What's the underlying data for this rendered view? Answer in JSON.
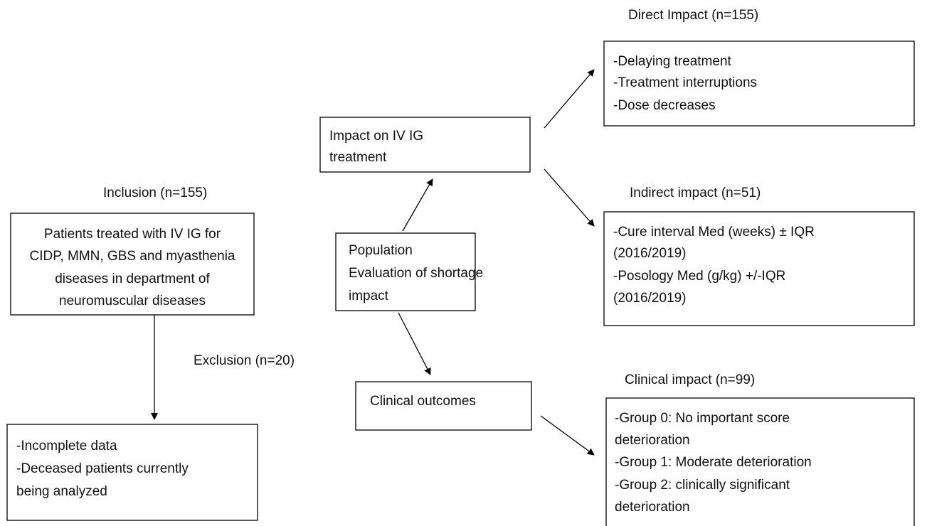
{
  "nodes": [
    {
      "label": "Inclusion (n=155)",
      "lines": [
        "Patients treated with IV IG for",
        "CIDP, MMN, GBS and myasthenia",
        "diseases in department of",
        "neuromuscular diseases"
      ]
    },
    {
      "label": "Exclusion (n=20)",
      "lines": [
        "-Incomplete data",
        "-Deceased patients currently",
        "being analyzed"
      ]
    },
    {
      "lines": [
        "Impact on IV IG",
        "treatment"
      ]
    },
    {
      "lines": [
        "Population",
        "Evaluation of shortage",
        "impact"
      ]
    },
    {
      "lines": [
        "Clinical outcomes"
      ]
    },
    {
      "label": "Direct Impact (n=155)",
      "lines": [
        "-Delaying treatment",
        "-Treatment interruptions",
        "-Dose decreases"
      ]
    },
    {
      "label": "Indirect impact (n=51)",
      "lines": [
        "-Cure interval Med (weeks) ± IQR",
        "(2016/2019)",
        "-Posology Med (g/kg) +/-IQR",
        "(2016/2019)"
      ]
    },
    {
      "label": "Clinical impact (n=99)",
      "lines": [
        "-Group 0: No important score",
        "deterioration",
        "-Group 1: Moderate deterioration",
        "-Group 2: clinically significant",
        "deterioration"
      ]
    }
  ]
}
